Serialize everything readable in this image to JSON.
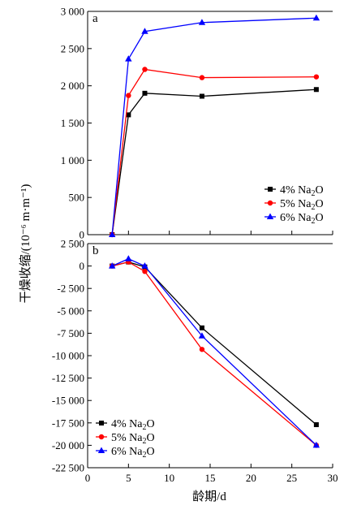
{
  "chart_data": [
    {
      "type": "line",
      "panel_label": "a",
      "x": [
        3,
        5,
        7,
        14,
        28
      ],
      "ylim": [
        0,
        3000
      ],
      "yticks": [
        "0",
        "500",
        "1 000",
        "1 500",
        "2 000",
        "2 500",
        "3 000"
      ],
      "series": [
        {
          "name": "4% Na2O",
          "color": "#000000",
          "marker": "square",
          "values": [
            0,
            1610,
            1900,
            1860,
            1950
          ]
        },
        {
          "name": "5% Na2O",
          "color": "#ff0000",
          "marker": "circle",
          "values": [
            0,
            1870,
            2220,
            2110,
            2120
          ]
        },
        {
          "name": "6% Na2O",
          "color": "#0000ff",
          "marker": "triangle",
          "values": [
            0,
            2360,
            2730,
            2850,
            2910
          ]
        }
      ],
      "legend": "bottom-right"
    },
    {
      "type": "line",
      "panel_label": "b",
      "x": [
        3,
        5,
        7,
        14,
        28
      ],
      "ylim": [
        -22500,
        2500
      ],
      "yticks": [
        "-22 500",
        "-20 000",
        "-17 500",
        "-15 000",
        "-12 500",
        "-10 000",
        "-7 500",
        "-5 000",
        "-2 500",
        "0",
        "2 500"
      ],
      "series": [
        {
          "name": "4% Na2O",
          "color": "#000000",
          "marker": "square",
          "values": [
            0,
            450,
            -100,
            -6900,
            -17700
          ]
        },
        {
          "name": "5% Na2O",
          "color": "#ff0000",
          "marker": "circle",
          "values": [
            0,
            450,
            -600,
            -9300,
            -20000
          ]
        },
        {
          "name": "6% Na2O",
          "color": "#0000ff",
          "marker": "triangle",
          "values": [
            0,
            800,
            0,
            -7800,
            -20000
          ]
        }
      ],
      "legend": "bottom-left"
    }
  ],
  "xaxis": {
    "xlim": [
      0,
      30
    ],
    "ticks": [
      "0",
      "5",
      "10",
      "15",
      "20",
      "25",
      "30"
    ],
    "label": "龄期/d"
  },
  "ylabel": "干燥收缩/(10⁻⁶ m·m⁻¹)"
}
